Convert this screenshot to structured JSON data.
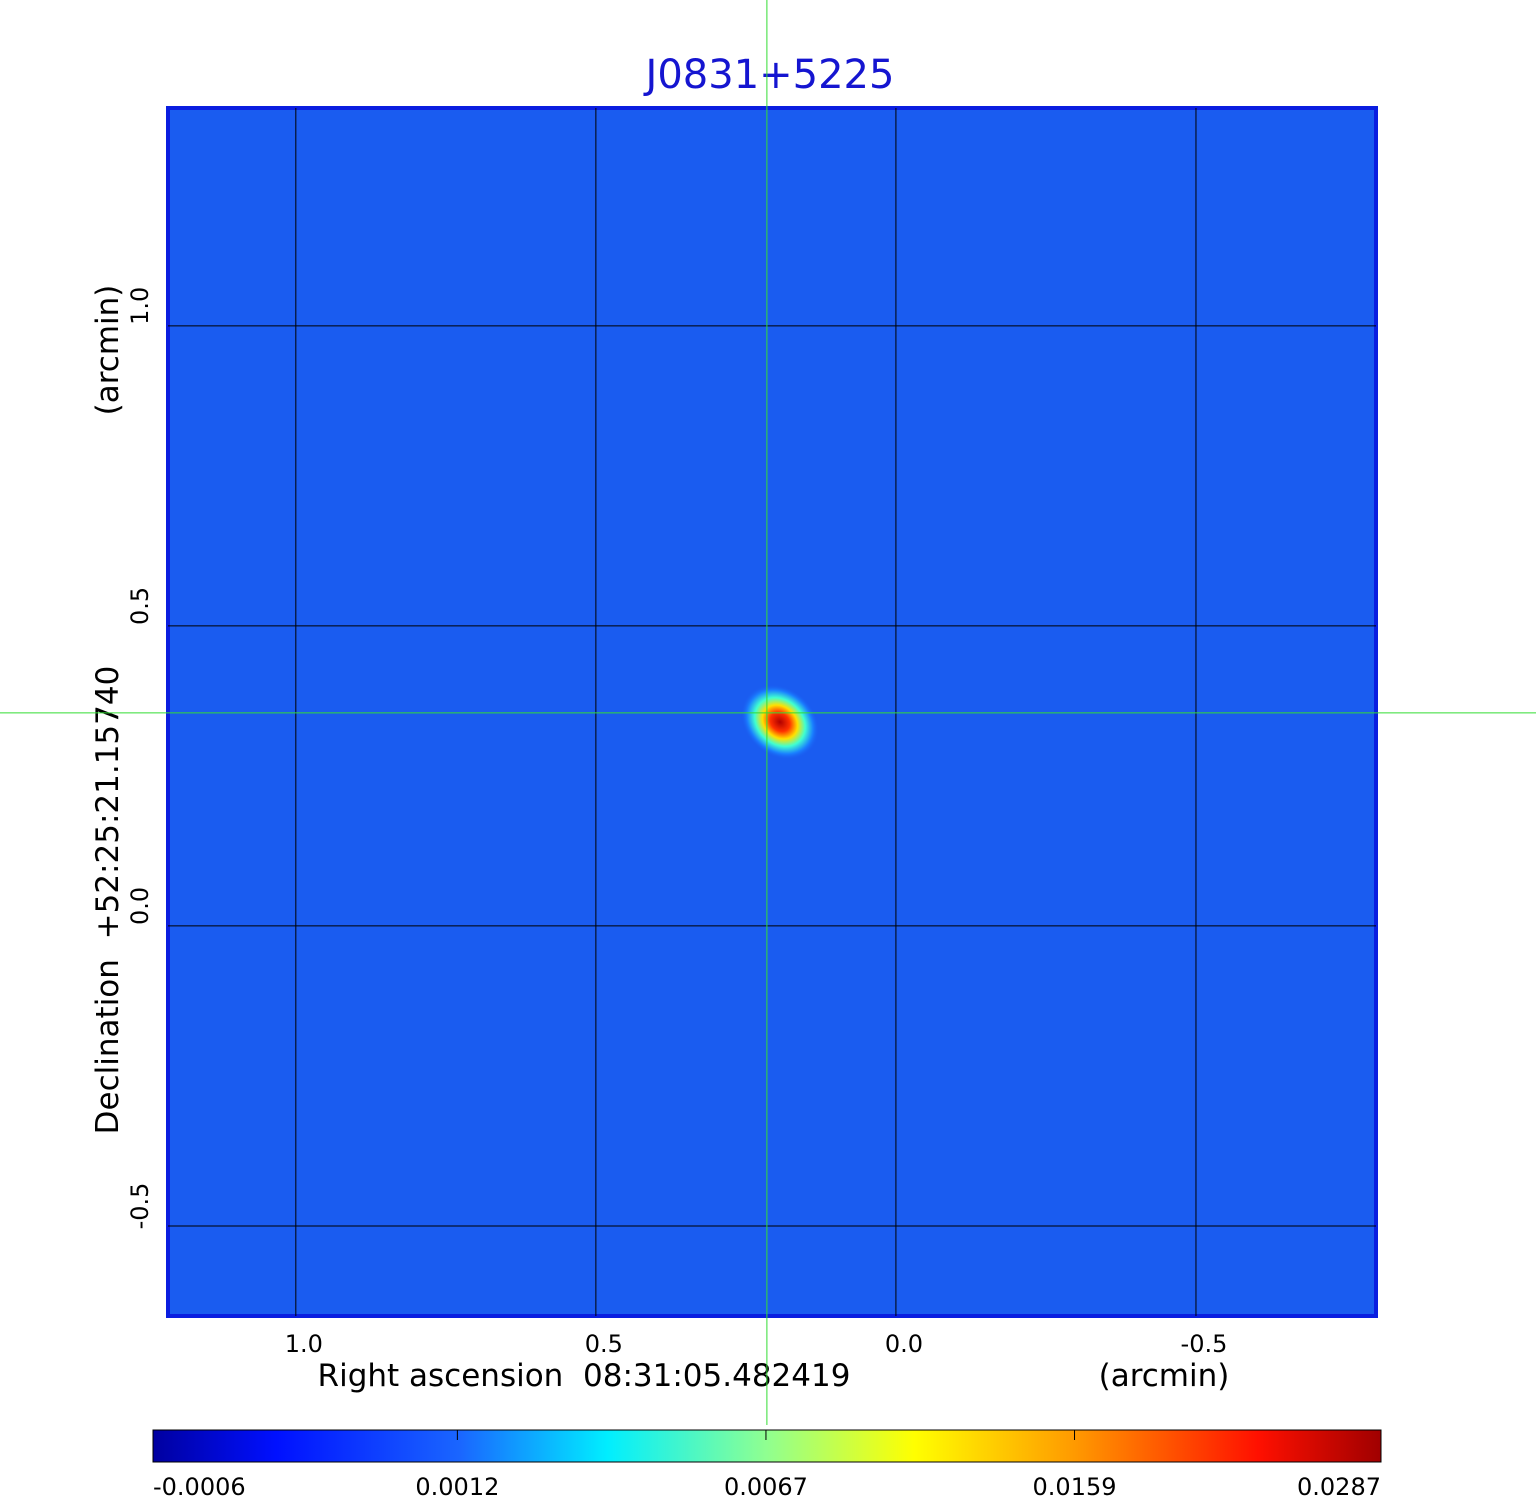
{
  "chart_data": {
    "type": "image",
    "title": "J0831+5225",
    "x_label": "Right ascension  08:31:05.482419",
    "x_unit": "(arcmin)",
    "y_label": "Declination  +52:25:21.15740",
    "y_unit": "(arcmin)",
    "xlim": [
      1.213,
      -0.8
    ],
    "ylim": [
      -0.65,
      1.363
    ],
    "xticks": [
      {
        "value": 1,
        "label": "1.0"
      },
      0.5,
      {
        "value": 0,
        "label": "0.0"
      },
      -0.5
    ],
    "yticks": [
      {
        "value": 1,
        "label": "1.0"
      },
      0.5,
      {
        "value": 0,
        "label": "0.0"
      },
      -0.5
    ],
    "grid": true,
    "crosshair": {
      "x": 0.215,
      "y": 0.355
    },
    "colorbar": {
      "lim": [
        -0.0006,
        0.0287
      ],
      "ticks": [
        -0.0006,
        0.0012,
        0.0067,
        0.0159,
        0.0287
      ],
      "scale": "sqrt"
    }
  }
}
